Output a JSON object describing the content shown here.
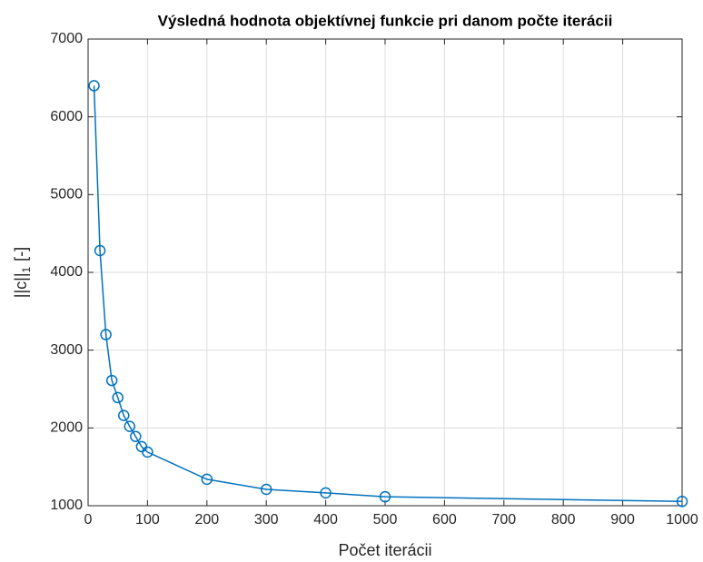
{
  "chart_data": {
    "type": "line",
    "title": "Výsledná hodnota objektívnej funkcie pri danom počte iterácii",
    "x_label": "Počet iterácii",
    "y_label": "||c||",
    "y_label_sub": "1",
    "y_label_suffix": "[-]",
    "x": [
      10,
      20,
      30,
      40,
      50,
      60,
      70,
      80,
      90,
      100,
      200,
      300,
      400,
      500,
      1000
    ],
    "series": [
      {
        "name": "||c||1",
        "color": "#0072bd",
        "values": [
          6400,
          4280,
          3200,
          2610,
          2390,
          2160,
          2020,
          1890,
          1760,
          1690,
          1340,
          1210,
          1165,
          1115,
          1055
        ]
      }
    ],
    "xlim": [
      0,
      1000
    ],
    "xticks": [
      0,
      100,
      200,
      300,
      400,
      500,
      600,
      700,
      800,
      900,
      1000
    ],
    "ylim": [
      1000,
      7000
    ],
    "yticks": [
      1000,
      2000,
      3000,
      4000,
      5000,
      6000,
      7000
    ],
    "grid": true
  }
}
